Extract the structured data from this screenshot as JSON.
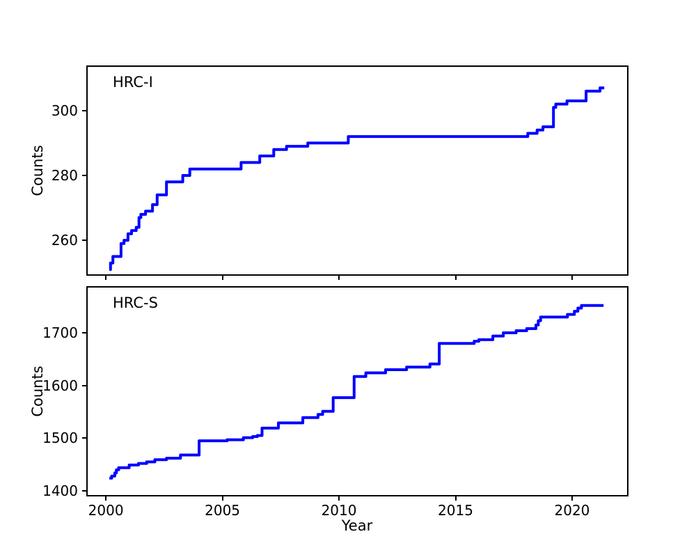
{
  "figure": {
    "background": "#ffffff",
    "line_color": "#0000ff",
    "spine_color": "#000000",
    "xlabel": "Year",
    "ylabel": "Counts"
  },
  "chart_data": [
    {
      "type": "line",
      "style": "step-post",
      "label": "HRC-I",
      "ylabel": "Counts",
      "xlabel": "",
      "grid": false,
      "legend": "none",
      "xlim": [
        1999.22,
        2022.36
      ],
      "ylim": [
        249.5,
        313.5
      ],
      "xticks": [
        2000,
        2005,
        2010,
        2015,
        2020
      ],
      "show_xtick_labels": false,
      "yticks": [
        260,
        280,
        300
      ],
      "points": [
        [
          2000.15,
          251
        ],
        [
          2000.2,
          253
        ],
        [
          2000.3,
          255
        ],
        [
          2000.65,
          259
        ],
        [
          2000.78,
          260
        ],
        [
          2000.95,
          262
        ],
        [
          2001.1,
          263
        ],
        [
          2001.3,
          264
        ],
        [
          2001.42,
          267
        ],
        [
          2001.5,
          268
        ],
        [
          2001.7,
          269
        ],
        [
          2002.0,
          271
        ],
        [
          2002.2,
          274
        ],
        [
          2002.6,
          278
        ],
        [
          2003.3,
          280
        ],
        [
          2003.6,
          282
        ],
        [
          2005.8,
          284
        ],
        [
          2006.6,
          286
        ],
        [
          2007.2,
          288
        ],
        [
          2007.75,
          289
        ],
        [
          2008.66,
          290
        ],
        [
          2010.4,
          292
        ],
        [
          2018.1,
          293
        ],
        [
          2018.5,
          294
        ],
        [
          2018.75,
          295
        ],
        [
          2019.2,
          301
        ],
        [
          2019.3,
          302
        ],
        [
          2019.78,
          303
        ],
        [
          2020.6,
          306
        ],
        [
          2021.2,
          307
        ],
        [
          2021.38,
          307
        ]
      ]
    },
    {
      "type": "line",
      "style": "step-post",
      "label": "HRC-S",
      "ylabel": "Counts",
      "xlabel": "Year",
      "grid": false,
      "legend": "none",
      "xlim": [
        1999.22,
        2022.36
      ],
      "ylim": [
        1392,
        1786
      ],
      "xticks": [
        2000,
        2005,
        2010,
        2015,
        2020
      ],
      "show_xtick_labels": true,
      "yticks": [
        1400,
        1500,
        1600,
        1700
      ],
      "points": [
        [
          2000.15,
          1424
        ],
        [
          2000.25,
          1428
        ],
        [
          2000.38,
          1434
        ],
        [
          2000.45,
          1440
        ],
        [
          2000.55,
          1444
        ],
        [
          2001.0,
          1449
        ],
        [
          2001.4,
          1452
        ],
        [
          2001.75,
          1455
        ],
        [
          2002.1,
          1459
        ],
        [
          2002.6,
          1462
        ],
        [
          2003.2,
          1468
        ],
        [
          2004.0,
          1495
        ],
        [
          2005.2,
          1497
        ],
        [
          2005.9,
          1501
        ],
        [
          2006.3,
          1503
        ],
        [
          2006.5,
          1505
        ],
        [
          2006.7,
          1519
        ],
        [
          2007.4,
          1529
        ],
        [
          2008.45,
          1539
        ],
        [
          2009.1,
          1545
        ],
        [
          2009.3,
          1551
        ],
        [
          2009.75,
          1577
        ],
        [
          2010.65,
          1617
        ],
        [
          2011.15,
          1624
        ],
        [
          2012.0,
          1630
        ],
        [
          2012.9,
          1635
        ],
        [
          2013.9,
          1641
        ],
        [
          2014.3,
          1680
        ],
        [
          2015.8,
          1684
        ],
        [
          2016.0,
          1687
        ],
        [
          2016.6,
          1694
        ],
        [
          2017.05,
          1700
        ],
        [
          2017.6,
          1704
        ],
        [
          2018.05,
          1708
        ],
        [
          2018.45,
          1715
        ],
        [
          2018.55,
          1723
        ],
        [
          2018.65,
          1730
        ],
        [
          2019.8,
          1735
        ],
        [
          2020.1,
          1741
        ],
        [
          2020.25,
          1747
        ],
        [
          2020.4,
          1752
        ],
        [
          2021.35,
          1752
        ]
      ]
    }
  ]
}
